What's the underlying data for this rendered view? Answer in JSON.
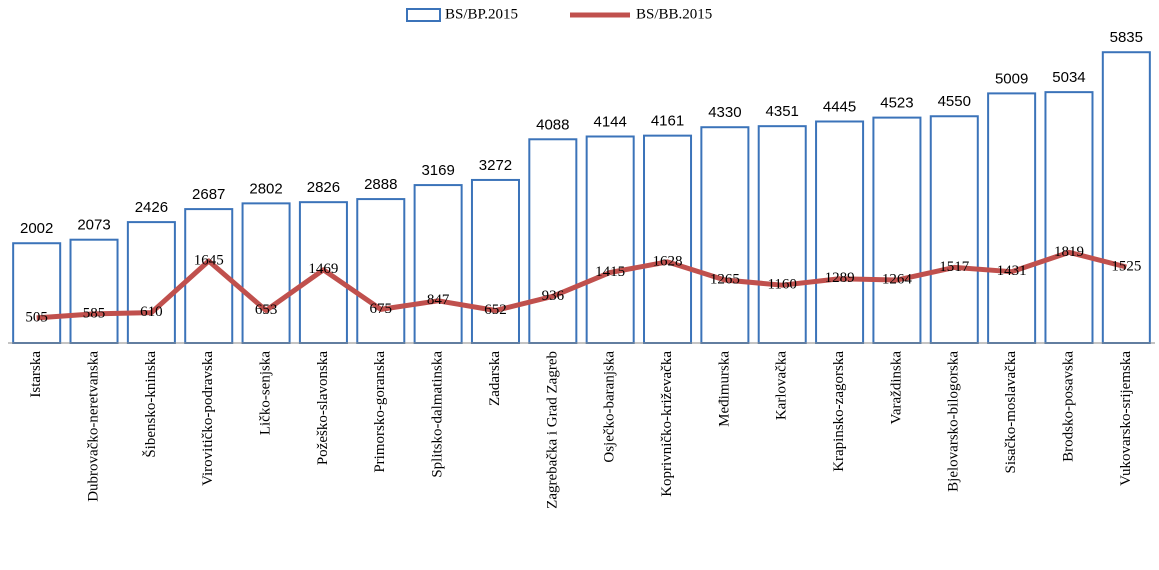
{
  "chart_data": {
    "type": "bar",
    "categories": [
      "Istarska",
      "Dubrovačko-neretvanska",
      "Šibensko-kninska",
      "Virovitičko-podravska",
      "Ličko-senjska",
      "Požeško-slavonska",
      "Primorsko-goranska",
      "Splitsko-dalmatinska",
      "Zadarska",
      "Zagrebačka i Grad Zagreb",
      "Osječko-baranjska",
      "Koprivničko-križevačka",
      "Međimurska",
      "Karlovačka",
      "Krapinsko-zagorska",
      "Varaždinska",
      "Bjelovarsko-bilogorska",
      "Sisačko-moslavačka",
      "Brodsko-posavska",
      "Vukovarsko-srijemska"
    ],
    "series": [
      {
        "name": "BS/BP.2015",
        "type": "bar",
        "color": "#3b73b9",
        "values": [
          2002,
          2073,
          2426,
          2687,
          2802,
          2826,
          2888,
          3169,
          3272,
          4088,
          4144,
          4161,
          4330,
          4351,
          4445,
          4523,
          4550,
          5009,
          5034,
          5835
        ]
      },
      {
        "name": "BS/BB.2015",
        "type": "line",
        "color": "#c0504d",
        "values": [
          505,
          585,
          610,
          1645,
          653,
          1469,
          675,
          847,
          652,
          936,
          1415,
          1628,
          1265,
          1160,
          1289,
          1264,
          1517,
          1431,
          1819,
          1525
        ]
      }
    ],
    "ylim": [
      0,
      6000
    ],
    "legend": "top"
  }
}
